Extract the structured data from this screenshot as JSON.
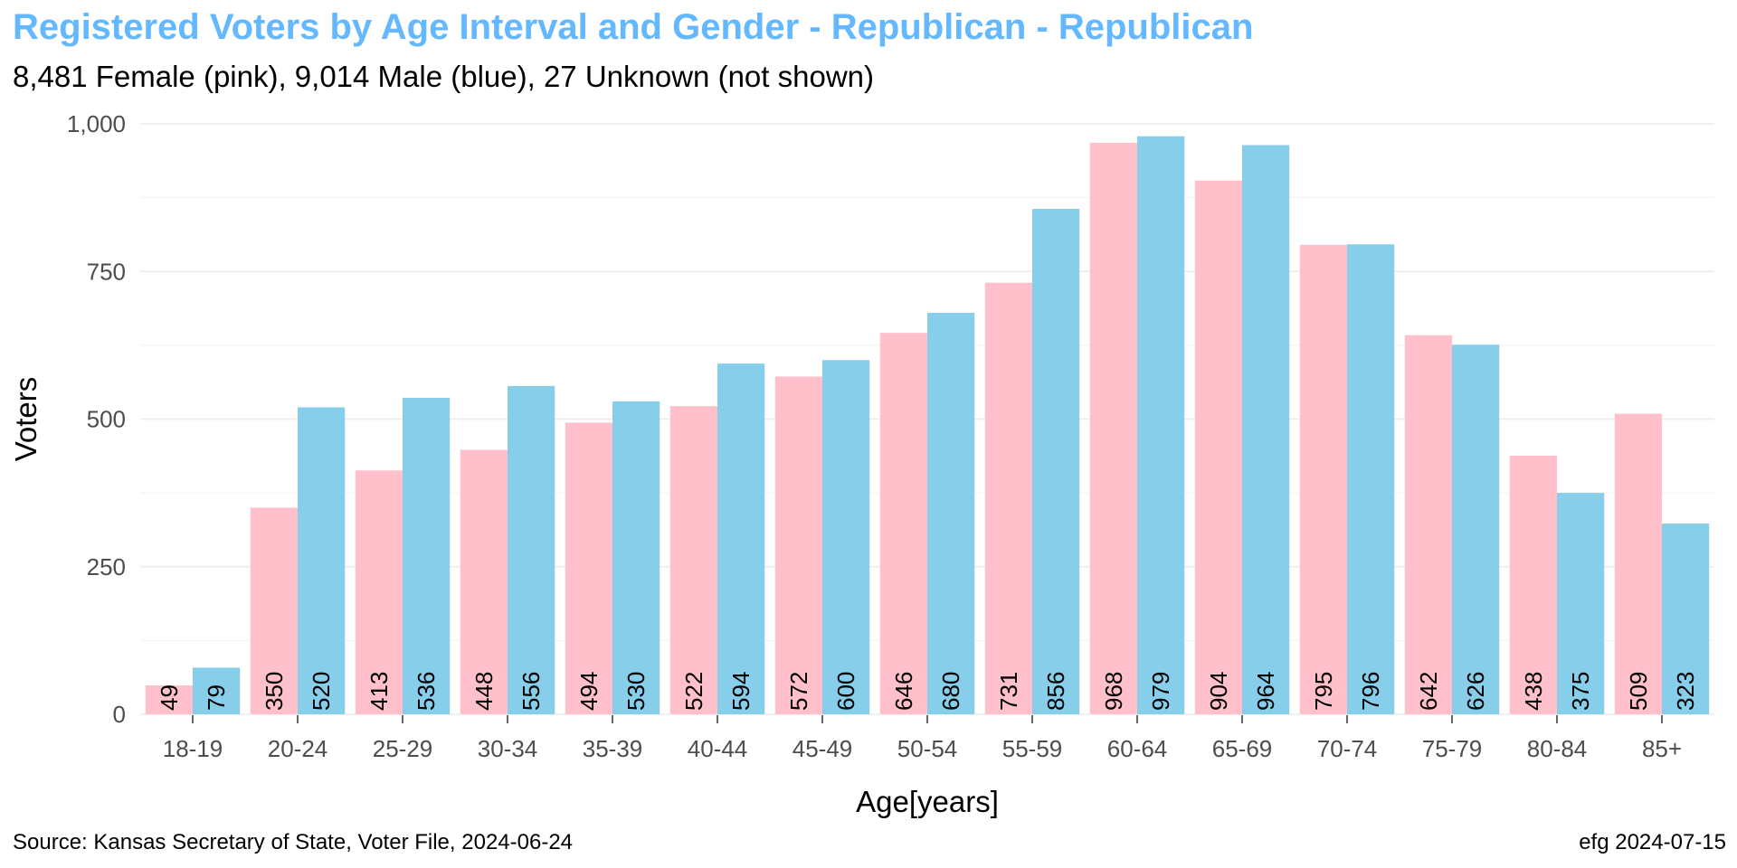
{
  "chart_data": {
    "type": "bar",
    "title": "Registered Voters by Age Interval and Gender - Republican - Republican",
    "subtitle": "8,481 Female (pink),  9,014 Male (blue),  27 Unknown (not shown)",
    "xlabel": "Age[years]",
    "ylabel": "Voters",
    "ylim": [
      0,
      1000
    ],
    "yticks": [
      0,
      250,
      500,
      750,
      1000
    ],
    "ytick_labels": [
      "0",
      "250",
      "500",
      "750",
      "1,000"
    ],
    "grid": true,
    "legend": "none",
    "categories": [
      "18-19",
      "20-24",
      "25-29",
      "30-34",
      "35-39",
      "40-44",
      "45-49",
      "50-54",
      "55-59",
      "60-64",
      "65-69",
      "70-74",
      "75-79",
      "80-84",
      "85+"
    ],
    "series": [
      {
        "color": "#ffc0cb",
        "values": [
          49,
          350,
          413,
          448,
          494,
          522,
          572,
          646,
          731,
          968,
          904,
          795,
          642,
          438,
          509
        ]
      },
      {
        "color": "#87ceeb",
        "values": [
          79,
          520,
          536,
          556,
          530,
          594,
          600,
          680,
          856,
          979,
          964,
          796,
          626,
          375,
          323
        ]
      }
    ]
  },
  "caption": {
    "source": "Source: Kansas Secretary of State, Voter File, 2024-06-24",
    "credit": "efg 2024-07-15"
  },
  "colors": {
    "title": "#63b8ff",
    "grid": "#ebebeb",
    "tick_text": "#4d4d4d"
  }
}
